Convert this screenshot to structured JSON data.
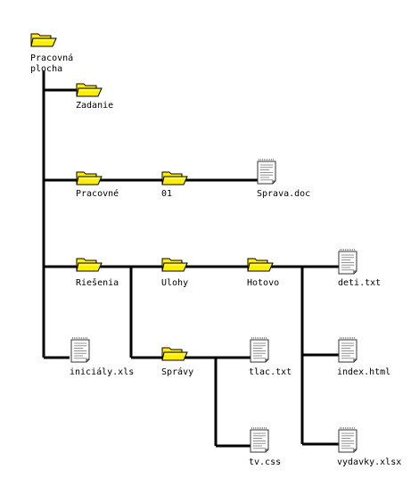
{
  "colors": {
    "line": "#000000",
    "folder_fill": "#ffee00",
    "folder_stroke": "#000000",
    "file_fill": "#ffffff",
    "file_stroke": "#333333"
  },
  "nodes": {
    "root": {
      "label_line1": "Pracovná",
      "label_line2": "plocha",
      "icon": "folder-icon"
    },
    "zadanie": {
      "label": "Zadanie",
      "icon": "folder-icon"
    },
    "pracovne": {
      "label": "Pracovné",
      "icon": "folder-icon"
    },
    "f01": {
      "label": "01",
      "icon": "folder-icon"
    },
    "sprava_doc": {
      "label": "Sprava.doc",
      "icon": "document-icon"
    },
    "riesenia": {
      "label": "Riešenia",
      "icon": "folder-icon"
    },
    "ulohy": {
      "label": "Ulohy",
      "icon": "folder-icon"
    },
    "hotovo": {
      "label": "Hotovo",
      "icon": "folder-icon"
    },
    "deti_txt": {
      "label": "deti.txt",
      "icon": "document-icon"
    },
    "index_html": {
      "label": "index.html",
      "icon": "document-icon"
    },
    "vydavky_xlsx": {
      "label": "vydavky.xlsx",
      "icon": "document-icon"
    },
    "spravy": {
      "label": "Správy",
      "icon": "folder-icon"
    },
    "tlac_txt": {
      "label": "tlac.txt",
      "icon": "document-icon"
    },
    "tv_css": {
      "label": "tv.css",
      "icon": "document-icon"
    },
    "inicialy_xls": {
      "label": "iniciály.xls",
      "icon": "document-icon"
    }
  }
}
